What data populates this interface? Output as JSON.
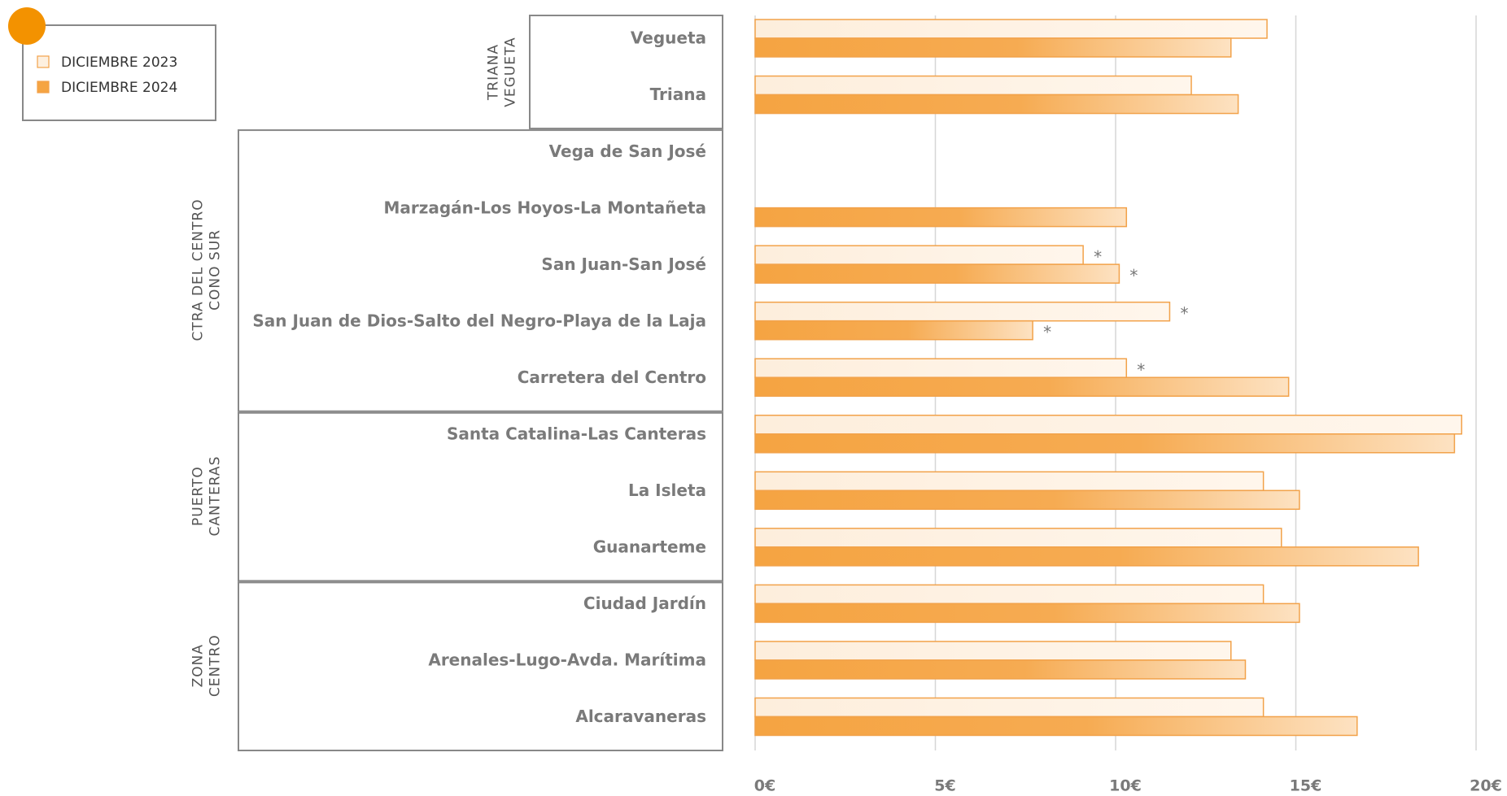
{
  "chart_data": {
    "type": "bar",
    "orientation": "horizontal",
    "legend": "top-left",
    "grid": true,
    "groups": [
      {
        "label": [
          "TRIANA",
          "VEGUETA"
        ],
        "categories": [
          "Vegueta",
          "Triana"
        ]
      },
      {
        "label": [
          "CTRA DEL CENTRO",
          "CONO SUR"
        ],
        "categories": [
          "Vega de San José",
          "Marzagán-Los Hoyos-La Montañeta",
          "San Juan-San José",
          "San Juan de Dios-Salto del Negro-Playa de la Laja",
          "Carretera del Centro"
        ]
      },
      {
        "label": [
          "PUERTO",
          "CANTERAS"
        ],
        "categories": [
          "Santa Catalina-Las Canteras",
          "La Isleta",
          "Guanarteme"
        ]
      },
      {
        "label": [
          "ZONA",
          "CENTRO"
        ],
        "categories": [
          "Ciudad Jardín",
          "Arenales-Lugo-Avda. Marítima",
          "Alcaravaneras"
        ]
      }
    ],
    "series": [
      {
        "name": "DICIEMBRE 2023",
        "color": "#fdf0e0",
        "values": [
          14.2,
          12.1,
          null,
          null,
          9.1,
          11.5,
          10.3,
          19.6,
          14.1,
          14.6,
          14.1,
          13.2,
          14.1
        ],
        "notes": [
          null,
          null,
          null,
          null,
          "*",
          "*",
          "*",
          null,
          null,
          null,
          null,
          null,
          null
        ]
      },
      {
        "name": "DICIEMBRE 2024",
        "color": "#f5a442",
        "values": [
          13.2,
          13.4,
          null,
          10.3,
          10.1,
          7.7,
          14.8,
          19.4,
          15.1,
          18.4,
          15.1,
          13.6,
          16.7
        ],
        "notes": [
          null,
          null,
          null,
          null,
          "*",
          "*",
          null,
          null,
          null,
          null,
          null,
          null,
          null
        ]
      }
    ],
    "xlim": [
      0,
      20
    ],
    "xticks": [
      {
        "value": 0,
        "label": "0€"
      },
      {
        "value": 5,
        "label": "5€"
      },
      {
        "value": 10,
        "label": "10€"
      },
      {
        "value": 15,
        "label": "15€"
      },
      {
        "value": 20,
        "label": "20€"
      }
    ]
  }
}
